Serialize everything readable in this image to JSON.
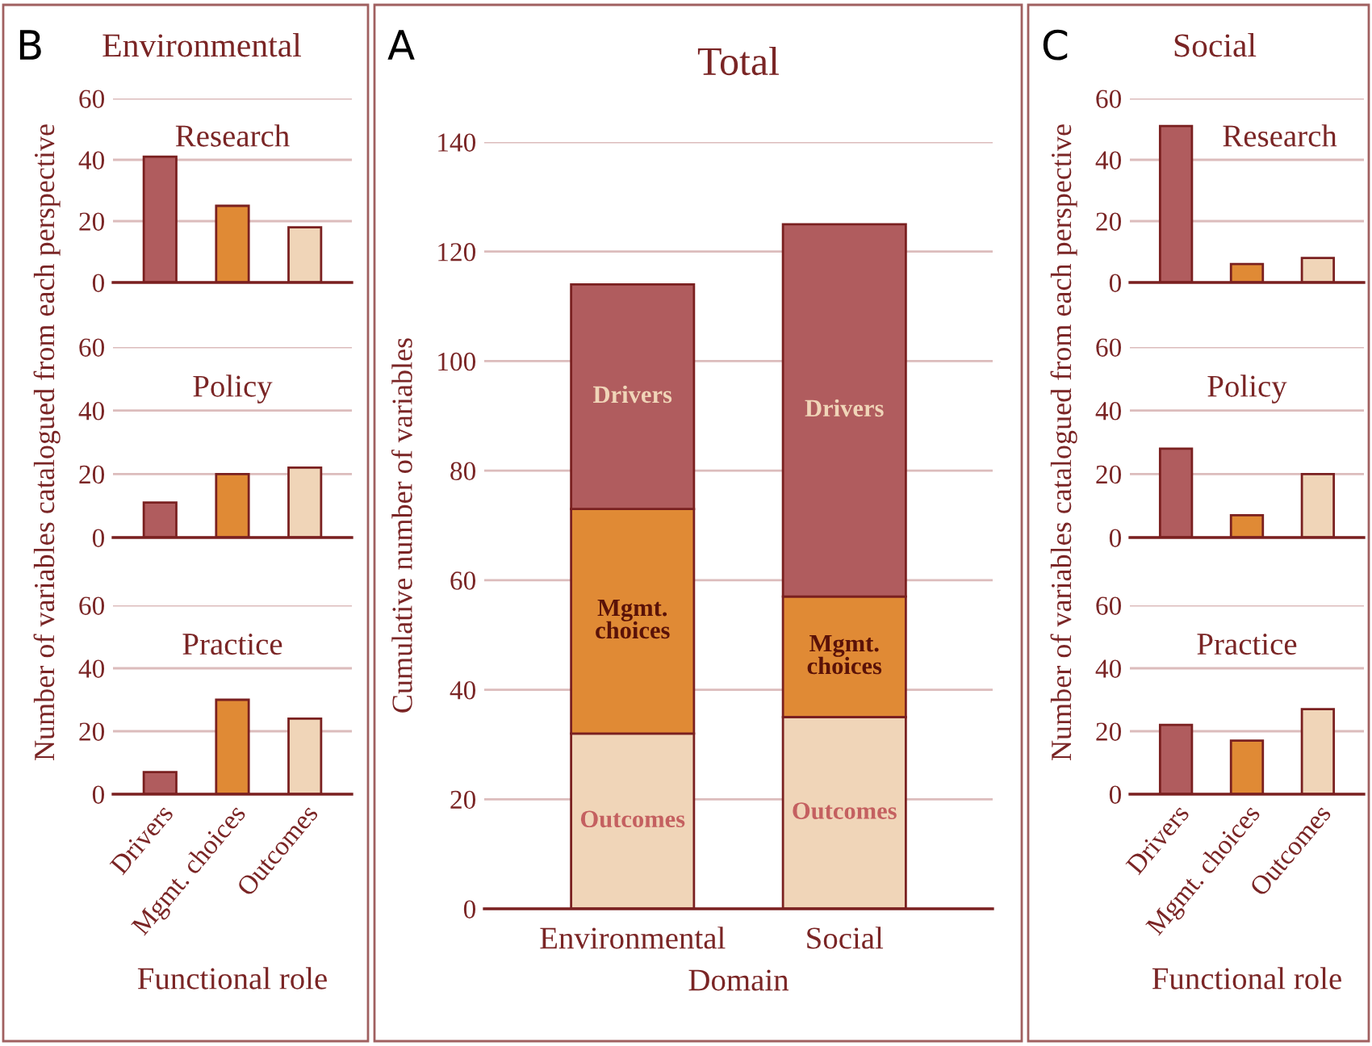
{
  "chart_data": [
    {
      "type": "bar",
      "title": "Research",
      "annotations": [
        "B",
        "Environmental"
      ],
      "categories": [
        null,
        null,
        null
      ],
      "values": [
        41,
        25,
        18
      ],
      "colors": [
        "#b05c5e",
        "#e08a35",
        "#f0d5b8"
      ],
      "ylim": [
        0,
        60
      ],
      "yticks": [
        0,
        20,
        40,
        60
      ],
      "grid": "y",
      "tick_labels": "y"
    },
    {
      "type": "bar",
      "title": "Policy",
      "ylabel": "Number of variables catalogued from each perspective",
      "categories": [
        null,
        null,
        null
      ],
      "values": [
        11,
        20,
        22
      ],
      "colors": [
        "#b05c5e",
        "#e08a35",
        "#f0d5b8"
      ],
      "ylim": [
        0,
        60
      ],
      "yticks": [
        0,
        20,
        40,
        60
      ],
      "grid": "y",
      "tick_labels": "y"
    },
    {
      "type": "bar",
      "title": "Practice",
      "xlabel": "Functional role",
      "categories": [
        "Drivers",
        "Mgmt. choices",
        "Outcomes"
      ],
      "values": [
        7,
        30,
        24
      ],
      "colors": [
        "#b05c5e",
        "#e08a35",
        "#f0d5b8"
      ],
      "ylim": [
        0,
        60
      ],
      "yticks": [
        0,
        20,
        40,
        60
      ],
      "grid": "y"
    },
    {
      "type": "bar",
      "title": "Total",
      "annotations": [
        "A"
      ],
      "xlabel": "Domain",
      "ylabel": "Cumulative number of variables",
      "categories": [
        "Environmental",
        "Social"
      ],
      "stacked": true,
      "ylim": [
        0,
        140
      ],
      "yticks": [
        0,
        20,
        40,
        60,
        80,
        100,
        120,
        140
      ],
      "grid": "y",
      "series": [
        {
          "name": "Outcomes",
          "color": "#f0d5b8",
          "values": [
            32,
            35
          ]
        },
        {
          "name": "Mgmt. choices",
          "color": "#e08a35",
          "values": [
            41,
            22
          ]
        },
        {
          "name": "Drivers",
          "color": "#b05c5e",
          "values": [
            41,
            68
          ]
        }
      ]
    },
    {
      "type": "bar",
      "title": "Research",
      "annotations": [
        "C",
        "Social"
      ],
      "categories": [
        null,
        null,
        null
      ],
      "values": [
        51,
        6,
        8
      ],
      "colors": [
        "#b05c5e",
        "#e08a35",
        "#f0d5b8"
      ],
      "ylim": [
        0,
        60
      ],
      "yticks": [
        0,
        20,
        40,
        60
      ],
      "grid": "y",
      "tick_labels": "y"
    },
    {
      "type": "bar",
      "title": "Policy",
      "ylabel": "Number of variables catalogued from each perspective",
      "categories": [
        null,
        null,
        null
      ],
      "values": [
        28,
        7,
        20
      ],
      "colors": [
        "#b05c5e",
        "#e08a35",
        "#f0d5b8"
      ],
      "ylim": [
        0,
        60
      ],
      "yticks": [
        0,
        20,
        40,
        60
      ],
      "grid": "y",
      "tick_labels": "y"
    },
    {
      "type": "bar",
      "title": "Practice",
      "xlabel": "Functional role",
      "categories": [
        "Drivers",
        "Mgmt. choices",
        "Outcomes"
      ],
      "values": [
        22,
        17,
        27
      ],
      "colors": [
        "#b05c5e",
        "#e08a35",
        "#f0d5b8"
      ],
      "ylim": [
        0,
        60
      ],
      "yticks": [
        0,
        20,
        40,
        60
      ],
      "grid": "y"
    }
  ]
}
